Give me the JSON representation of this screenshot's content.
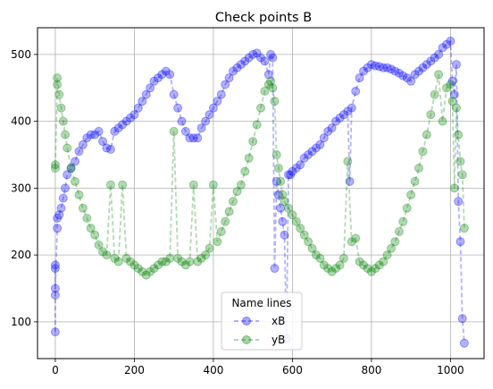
{
  "chart_data": {
    "type": "scatter",
    "title": "Check points B",
    "xlabel": "",
    "ylabel": "",
    "xlim": [
      -45,
      1085
    ],
    "ylim": [
      45,
      540
    ],
    "x_ticks": [
      0,
      200,
      400,
      600,
      800,
      1000
    ],
    "y_ticks": [
      100,
      200,
      300,
      400,
      500
    ],
    "grid": true,
    "legend": {
      "title": "Name lines",
      "placement": "lower-center"
    },
    "series": [
      {
        "name": "xB",
        "color": "#0000ff",
        "style": "dashed line with circle markers",
        "x": [
          0,
          0,
          0,
          0,
          0,
          5,
          5,
          10,
          15,
          20,
          25,
          30,
          40,
          50,
          60,
          70,
          80,
          90,
          100,
          110,
          120,
          130,
          140,
          150,
          160,
          170,
          180,
          190,
          200,
          210,
          220,
          230,
          240,
          250,
          260,
          270,
          280,
          290,
          300,
          310,
          320,
          330,
          340,
          350,
          360,
          370,
          380,
          390,
          400,
          410,
          420,
          430,
          440,
          450,
          460,
          470,
          480,
          490,
          500,
          510,
          520,
          530,
          540,
          545,
          550,
          555,
          560,
          565,
          570,
          575,
          580,
          585,
          590,
          595,
          600,
          610,
          620,
          630,
          640,
          650,
          660,
          670,
          680,
          690,
          700,
          710,
          720,
          730,
          740,
          745,
          750,
          760,
          770,
          780,
          790,
          800,
          810,
          820,
          830,
          840,
          850,
          860,
          870,
          880,
          890,
          900,
          910,
          920,
          930,
          940,
          950,
          960,
          970,
          980,
          990,
          1000,
          1005,
          1010,
          1015,
          1020,
          1025,
          1030,
          1035
        ],
        "y": [
          85,
          140,
          180,
          185,
          150,
          240,
          255,
          260,
          270,
          285,
          300,
          320,
          330,
          340,
          355,
          365,
          375,
          380,
          380,
          385,
          370,
          360,
          358,
          385,
          390,
          395,
          400,
          405,
          410,
          420,
          430,
          440,
          450,
          460,
          465,
          470,
          475,
          470,
          440,
          420,
          400,
          385,
          375,
          375,
          375,
          390,
          400,
          410,
          420,
          430,
          440,
          455,
          465,
          475,
          480,
          485,
          490,
          495,
          500,
          502,
          495,
          490,
          470,
          500,
          495,
          180,
          310,
          290,
          270,
          250,
          230,
          75,
          320,
          320,
          325,
          330,
          335,
          345,
          350,
          355,
          360,
          365,
          375,
          385,
          390,
          400,
          405,
          410,
          415,
          310,
          420,
          445,
          465,
          475,
          480,
          485,
          483,
          482,
          480,
          480,
          478,
          475,
          472,
          468,
          465,
          460,
          470,
          475,
          480,
          485,
          490,
          495,
          500,
          510,
          515,
          520,
          460,
          440,
          485,
          280,
          220,
          105,
          68
        ]
      },
      {
        "name": "yB",
        "color": "#008000",
        "style": "dashed line with circle markers",
        "x": [
          0,
          0,
          5,
          5,
          10,
          15,
          20,
          25,
          30,
          40,
          50,
          60,
          70,
          80,
          90,
          100,
          110,
          120,
          130,
          140,
          150,
          160,
          170,
          180,
          190,
          200,
          210,
          220,
          230,
          240,
          250,
          260,
          270,
          280,
          290,
          300,
          310,
          320,
          330,
          340,
          350,
          360,
          370,
          380,
          390,
          400,
          410,
          420,
          430,
          440,
          450,
          460,
          470,
          480,
          490,
          500,
          510,
          520,
          530,
          540,
          545,
          550,
          555,
          560,
          565,
          570,
          575,
          580,
          590,
          600,
          610,
          620,
          630,
          640,
          650,
          660,
          670,
          680,
          690,
          700,
          710,
          720,
          730,
          740,
          750,
          760,
          770,
          780,
          790,
          800,
          810,
          820,
          830,
          840,
          850,
          860,
          870,
          880,
          890,
          900,
          910,
          920,
          930,
          940,
          950,
          960,
          970,
          980,
          990,
          1000,
          1005,
          1010,
          1015,
          1020,
          1025,
          1030,
          1035
        ],
        "y": [
          335,
          330,
          455,
          465,
          440,
          420,
          400,
          380,
          360,
          330,
          310,
          290,
          270,
          255,
          240,
          230,
          215,
          205,
          200,
          305,
          195,
          190,
          305,
          195,
          190,
          185,
          180,
          175,
          170,
          175,
          180,
          185,
          190,
          190,
          195,
          385,
          195,
          190,
          185,
          190,
          305,
          190,
          195,
          200,
          210,
          305,
          220,
          235,
          250,
          265,
          280,
          295,
          305,
          325,
          345,
          370,
          395,
          420,
          445,
          455,
          460,
          450,
          430,
          350,
          330,
          310,
          290,
          280,
          270,
          260,
          250,
          240,
          230,
          220,
          210,
          200,
          195,
          185,
          180,
          175,
          180,
          185,
          195,
          340,
          220,
          225,
          190,
          185,
          180,
          175,
          180,
          185,
          190,
          200,
          210,
          220,
          235,
          250,
          270,
          290,
          310,
          330,
          355,
          380,
          410,
          440,
          470,
          400,
          450,
          455,
          430,
          300,
          420,
          380,
          340,
          320,
          240
        ]
      }
    ]
  }
}
